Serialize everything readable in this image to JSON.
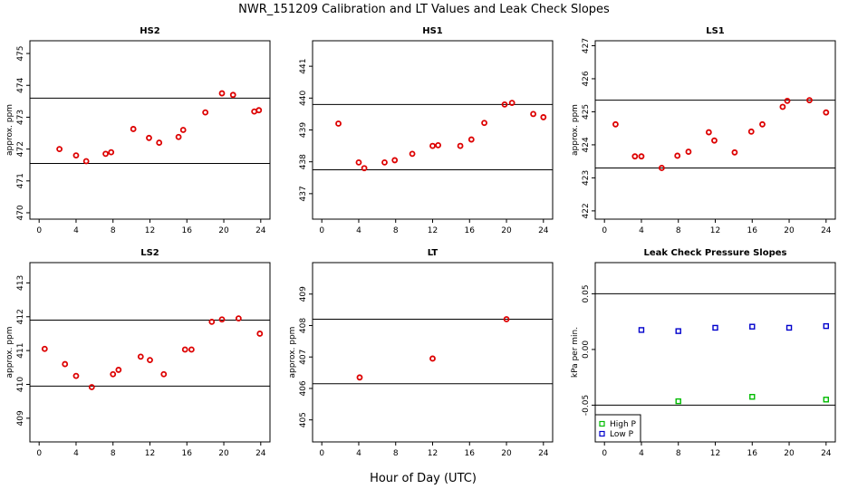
{
  "title": "NWR_151209  Calibration and LT Values and Leak Check Slopes",
  "xlabel": "Hour of Day (UTC)",
  "colors": {
    "red": "#dd0000",
    "green": "#00bb00",
    "blue": "#0000cc"
  },
  "chart_data": [
    {
      "type": "scatter",
      "title": "HS2",
      "ylabel": "approx. ppm",
      "xlim": [
        -1,
        25
      ],
      "ylim": [
        469.8,
        475.4
      ],
      "x_ticks": [
        0,
        4,
        8,
        12,
        16,
        20,
        24
      ],
      "y_ticks": [
        470,
        471,
        472,
        473,
        474,
        475
      ],
      "hlines": [
        471.55,
        473.6
      ],
      "series": [
        {
          "color": "red",
          "marker": "circle",
          "x": [
            2.2,
            4.0,
            5.1,
            7.2,
            7.8,
            10.2,
            11.9,
            13.0,
            15.1,
            15.6,
            18.0,
            19.8,
            21.0,
            23.3,
            23.8
          ],
          "y": [
            472.0,
            471.8,
            471.62,
            471.85,
            471.9,
            472.63,
            472.35,
            472.2,
            472.38,
            472.6,
            473.15,
            473.75,
            473.7,
            473.18,
            473.22
          ]
        }
      ]
    },
    {
      "type": "scatter",
      "title": "HS1",
      "ylabel": "",
      "xlim": [
        -1,
        25
      ],
      "ylim": [
        436.2,
        441.8
      ],
      "x_ticks": [
        0,
        4,
        8,
        12,
        16,
        20,
        24
      ],
      "y_ticks": [
        437,
        438,
        439,
        440,
        441
      ],
      "hlines": [
        437.75,
        439.8
      ],
      "series": [
        {
          "color": "red",
          "marker": "circle",
          "x": [
            1.8,
            4.0,
            4.6,
            6.8,
            7.9,
            9.8,
            12.0,
            12.6,
            15.0,
            16.2,
            17.6,
            19.8,
            20.6,
            22.9,
            24.0
          ],
          "y": [
            439.2,
            437.98,
            437.8,
            437.98,
            438.05,
            438.25,
            438.5,
            438.52,
            438.5,
            438.7,
            439.22,
            439.8,
            439.85,
            439.5,
            439.4
          ]
        }
      ]
    },
    {
      "type": "scatter",
      "title": "LS1",
      "ylabel": "approx. ppm",
      "xlim": [
        -1,
        25
      ],
      "ylim": [
        421.75,
        427.15
      ],
      "x_ticks": [
        0,
        4,
        8,
        12,
        16,
        20,
        24
      ],
      "y_ticks": [
        422,
        423,
        424,
        425,
        426,
        427
      ],
      "hlines": [
        423.3,
        425.35
      ],
      "series": [
        {
          "color": "red",
          "marker": "circle",
          "x": [
            1.2,
            3.3,
            4.0,
            6.2,
            7.9,
            9.1,
            11.3,
            11.9,
            14.1,
            15.9,
            17.1,
            19.3,
            19.8,
            22.2,
            24.0
          ],
          "y": [
            424.62,
            423.65,
            423.65,
            423.3,
            423.67,
            423.79,
            424.38,
            424.13,
            423.77,
            424.4,
            424.62,
            425.15,
            425.33,
            425.35,
            424.98
          ]
        }
      ]
    },
    {
      "type": "scatter",
      "title": "LS2",
      "ylabel": "approx. ppm",
      "xlim": [
        -1,
        25
      ],
      "ylim": [
        408.3,
        413.6
      ],
      "x_ticks": [
        0,
        4,
        8,
        12,
        16,
        20,
        24
      ],
      "y_ticks": [
        409,
        410,
        411,
        412,
        413
      ],
      "hlines": [
        409.95,
        411.9
      ],
      "series": [
        {
          "color": "red",
          "marker": "circle",
          "x": [
            0.6,
            2.8,
            4.0,
            5.7,
            8.0,
            8.6,
            11.0,
            12.0,
            13.5,
            15.8,
            16.5,
            18.7,
            19.8,
            21.6,
            23.9
          ],
          "y": [
            411.05,
            410.6,
            410.25,
            409.92,
            410.3,
            410.43,
            410.82,
            410.72,
            410.3,
            411.03,
            411.03,
            411.85,
            411.92,
            411.95,
            411.5
          ]
        }
      ]
    },
    {
      "type": "scatter",
      "title": "LT",
      "ylabel": "approx. ppm",
      "xlim": [
        -1,
        25
      ],
      "ylim": [
        404.3,
        410.0
      ],
      "x_ticks": [
        0,
        4,
        8,
        12,
        16,
        20,
        24
      ],
      "y_ticks": [
        405,
        406,
        407,
        408,
        409
      ],
      "hlines": [
        406.15,
        408.2
      ],
      "series": [
        {
          "color": "red",
          "marker": "circle",
          "x": [
            4.1,
            12.0,
            20.0
          ],
          "y": [
            406.35,
            406.95,
            408.2
          ]
        }
      ]
    },
    {
      "type": "scatter",
      "title": "Leak Check Pressure Slopes",
      "ylabel": "kPa per min.",
      "xlim": [
        -1,
        25
      ],
      "ylim": [
        -0.083,
        0.078
      ],
      "x_ticks": [
        0,
        4,
        8,
        12,
        16,
        20,
        24
      ],
      "y_ticks": [
        -0.05,
        0.0,
        0.05
      ],
      "y_tick_labels": [
        "-0.05",
        "0.00",
        "0.05"
      ],
      "hlines": [
        0.05,
        -0.05
      ],
      "legend": "bottom-left",
      "series": [
        {
          "name": "High P",
          "color": "green",
          "marker": "square",
          "x": [
            8.0,
            16.0,
            24.0
          ],
          "y": [
            -0.0465,
            -0.0425,
            -0.045
          ]
        },
        {
          "name": "Low P",
          "color": "blue",
          "marker": "square",
          "x": [
            4.0,
            8.0,
            12.0,
            16.0,
            20.0,
            24.0
          ],
          "y": [
            0.0175,
            0.0165,
            0.0195,
            0.0205,
            0.0195,
            0.021
          ]
        }
      ]
    }
  ]
}
